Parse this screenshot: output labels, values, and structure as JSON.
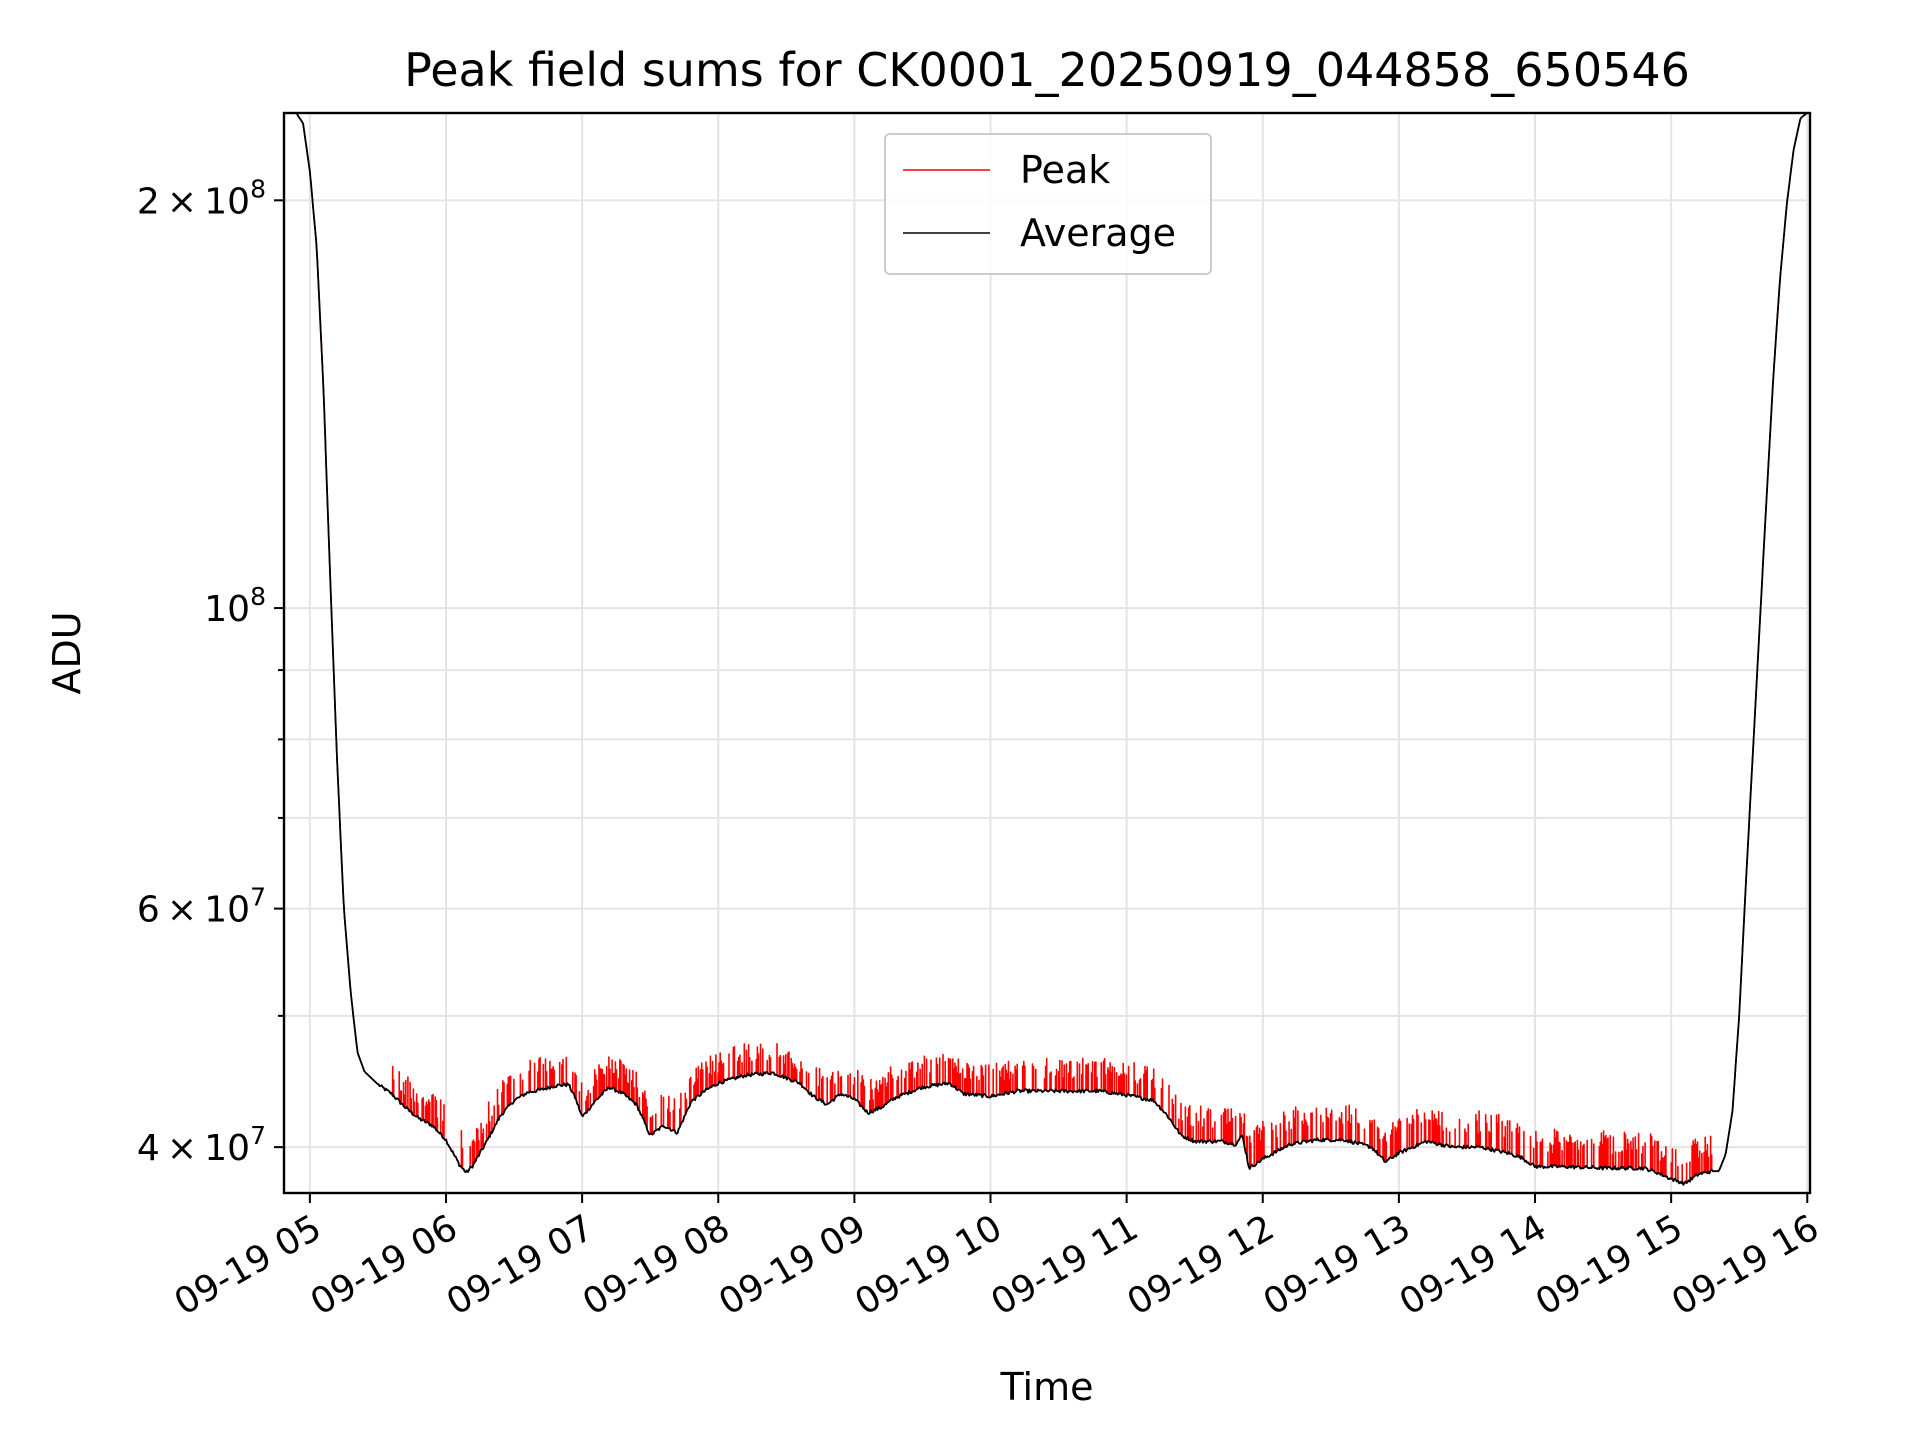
{
  "chart_data": {
    "type": "line",
    "title": "Peak field sums for CK0001_20250919_044858_650546",
    "xlabel": "Time",
    "ylabel": "ADU",
    "yscale": "log",
    "xlim_hours": [
      4.81,
      16.02
    ],
    "ylim": [
      37000000,
      232000000
    ],
    "grid": true,
    "legend_position": "upper center",
    "x_ticks": [
      {
        "hour": 5,
        "label": "09-19 05"
      },
      {
        "hour": 6,
        "label": "09-19 06"
      },
      {
        "hour": 7,
        "label": "09-19 07"
      },
      {
        "hour": 8,
        "label": "09-19 08"
      },
      {
        "hour": 9,
        "label": "09-19 09"
      },
      {
        "hour": 10,
        "label": "09-19 10"
      },
      {
        "hour": 11,
        "label": "09-19 11"
      },
      {
        "hour": 12,
        "label": "09-19 12"
      },
      {
        "hour": 13,
        "label": "09-19 13"
      },
      {
        "hour": 14,
        "label": "09-19 14"
      },
      {
        "hour": 15,
        "label": "09-19 15"
      },
      {
        "hour": 16,
        "label": "09-19 16"
      }
    ],
    "y_major_ticks": [
      {
        "value": 40000000,
        "mantissa": "4",
        "exponent": "7"
      },
      {
        "value": 60000000,
        "mantissa": "6",
        "exponent": "7"
      },
      {
        "value": 100000000,
        "mantissa": "",
        "exponent": "8"
      },
      {
        "value": 200000000,
        "mantissa": "2",
        "exponent": "8"
      }
    ],
    "y_minor_ticks": [
      50000000,
      70000000,
      80000000,
      90000000
    ],
    "series": [
      {
        "name": "Peak",
        "color": "#ff0000",
        "spike_max_adu": 2500000,
        "spike_regions_hours": [
          [
            5.6,
            6.0
          ],
          [
            6.1,
            7.5
          ],
          [
            7.5,
            9.0
          ],
          [
            9.0,
            11.3
          ],
          [
            11.3,
            11.9
          ],
          [
            11.9,
            15.3
          ]
        ]
      },
      {
        "name": "Average",
        "color": "#000000",
        "hours": [
          4.8,
          4.85,
          4.9,
          4.95,
          5.0,
          5.05,
          5.1,
          5.15,
          5.2,
          5.25,
          5.3,
          5.35,
          5.4,
          5.45,
          5.5,
          5.6,
          5.7,
          5.8,
          5.9,
          6.0,
          6.1,
          6.15,
          6.2,
          6.3,
          6.4,
          6.5,
          6.6,
          6.7,
          6.8,
          6.9,
          6.95,
          7.0,
          7.1,
          7.2,
          7.3,
          7.4,
          7.5,
          7.6,
          7.7,
          7.8,
          7.9,
          8.0,
          8.2,
          8.4,
          8.5,
          8.6,
          8.7,
          8.8,
          8.9,
          9.0,
          9.1,
          9.2,
          9.3,
          9.5,
          9.7,
          9.8,
          10.0,
          10.2,
          10.5,
          10.8,
          11.0,
          11.2,
          11.3,
          11.4,
          11.5,
          11.6,
          11.7,
          11.8,
          11.85,
          11.9,
          12.0,
          12.2,
          12.4,
          12.6,
          12.8,
          12.9,
          13.0,
          13.2,
          13.4,
          13.6,
          13.8,
          13.9,
          14.0,
          14.2,
          14.5,
          14.8,
          14.9,
          15.0,
          15.1,
          15.2,
          15.3,
          15.35,
          15.4,
          15.45,
          15.5,
          15.55,
          15.6,
          15.65,
          15.7,
          15.75,
          15.8,
          15.85,
          15.9,
          15.95,
          16.0
        ],
        "values": [
          232000000,
          232000000,
          232000000,
          228000000,
          210000000,
          185000000,
          145000000,
          105000000,
          77000000,
          60000000,
          52000000,
          47000000,
          45500000,
          45000000,
          44500000,
          43800000,
          42800000,
          42000000,
          41500000,
          40500000,
          38800000,
          38300000,
          38800000,
          40400000,
          42200000,
          43300000,
          43900000,
          44100000,
          44400000,
          44500000,
          43500000,
          42100000,
          43300000,
          44300000,
          43800000,
          43000000,
          40800000,
          41500000,
          41000000,
          43200000,
          44000000,
          44600000,
          45200000,
          45400000,
          45000000,
          44600000,
          43600000,
          43000000,
          43800000,
          43400000,
          42400000,
          42800000,
          43500000,
          44300000,
          44600000,
          43800000,
          43600000,
          44000000,
          44000000,
          44000000,
          43700000,
          43300000,
          42200000,
          40800000,
          40400000,
          40400000,
          40400000,
          40200000,
          40800000,
          38600000,
          39200000,
          40200000,
          40500000,
          40500000,
          40000000,
          39000000,
          39600000,
          40400000,
          40000000,
          40000000,
          39600000,
          39300000,
          38700000,
          38700000,
          38600000,
          38600000,
          38300000,
          37900000,
          37600000,
          38200000,
          38400000,
          38400000,
          39500000,
          42500000,
          50000000,
          63000000,
          78000000,
          97000000,
          120000000,
          148000000,
          175000000,
          199000000,
          218000000,
          230000000,
          232000000
        ]
      }
    ]
  }
}
